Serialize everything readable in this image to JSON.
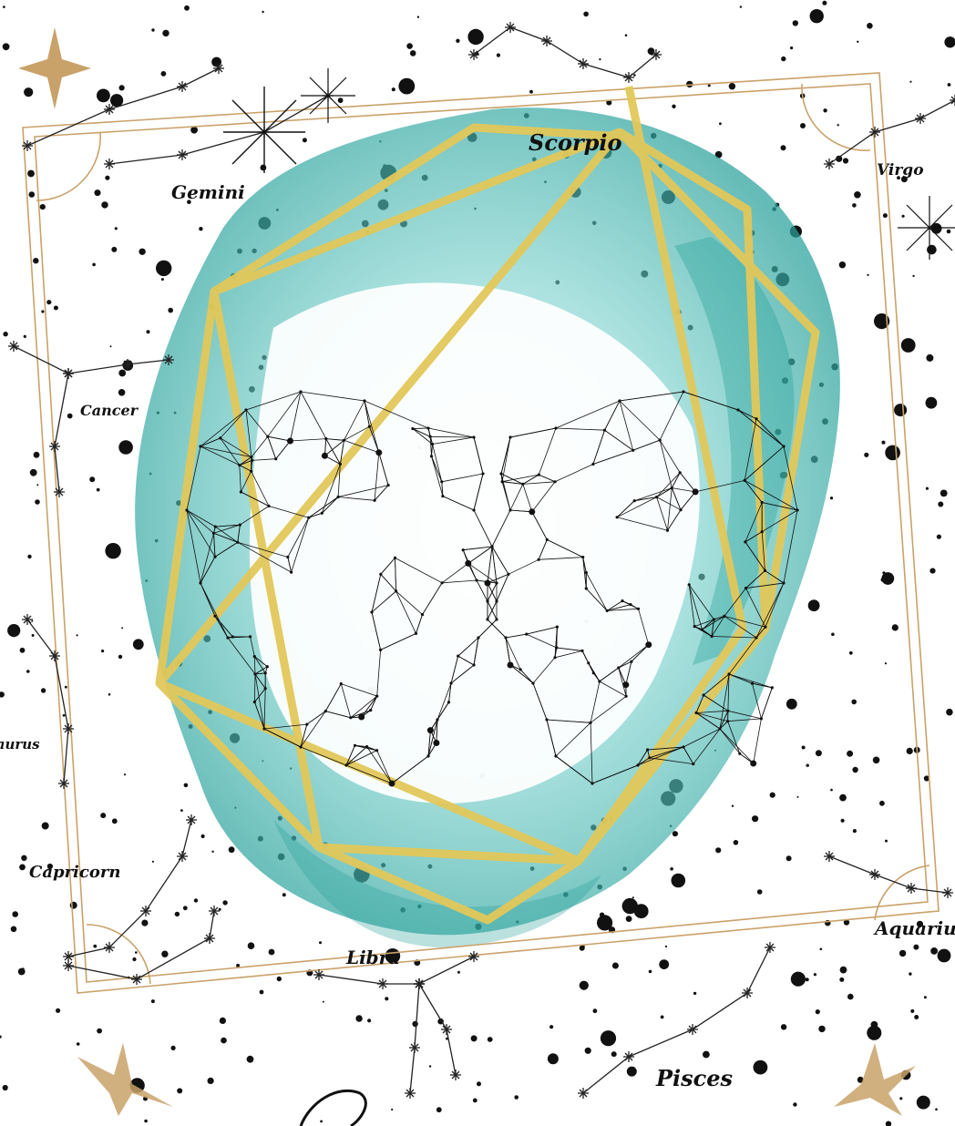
{
  "colors": {
    "background": "#ffffff",
    "watercolor": "#5cc4c0",
    "watercolor_dark": "#2aa19b",
    "gold": "#e6cf6a",
    "frame": "#c9a26a",
    "ink": "#111111"
  },
  "constellations": {
    "gemini": "Gemini",
    "scorpio": "Scorpio",
    "virgo": "Virgo",
    "cancer": "Cancer",
    "taurus": "Taurus",
    "capricorn": "Capricorn",
    "libra": "Libra",
    "aquarius": "Aquarius",
    "pisces": "Pisces"
  }
}
